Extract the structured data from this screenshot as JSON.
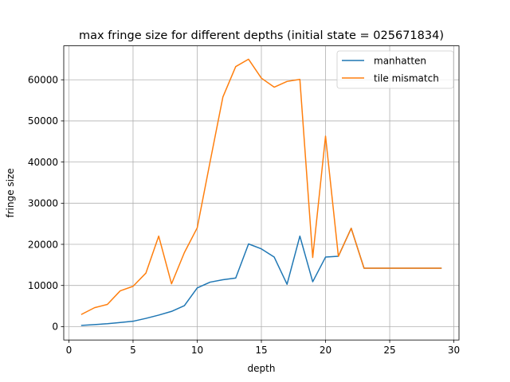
{
  "chart_data": {
    "type": "line",
    "title": "max fringe size for different depths (initial state = 025671834)",
    "xlabel": "depth",
    "ylabel": "fringe size",
    "xlim": [
      -0.4,
      30.4
    ],
    "ylim": [
      -3250,
      68250
    ],
    "xticks": [
      0,
      5,
      10,
      15,
      20,
      25,
      30
    ],
    "yticks": [
      0,
      10000,
      20000,
      30000,
      40000,
      50000,
      60000
    ],
    "grid": true,
    "legend_position": "top-right",
    "series": [
      {
        "name": "manhatten",
        "color": "#1f77b4",
        "x": [
          1,
          2,
          3,
          4,
          5,
          6,
          7,
          8,
          9,
          10,
          11,
          12,
          13,
          14,
          15,
          16,
          17,
          18,
          19,
          20,
          21,
          22,
          23,
          24,
          25,
          26,
          27,
          28,
          29
        ],
        "y": [
          300,
          500,
          700,
          1000,
          1300,
          2000,
          2800,
          3700,
          5100,
          9400,
          10800,
          11400,
          11800,
          20100,
          18900,
          16900,
          10300,
          22000,
          10900,
          16900,
          17100,
          23900,
          14200,
          14200,
          14200,
          14200,
          14200,
          14200,
          14200
        ]
      },
      {
        "name": "tile mismatch",
        "color": "#ff7f0e",
        "x": [
          1,
          2,
          3,
          4,
          5,
          6,
          7,
          8,
          9,
          10,
          11,
          12,
          13,
          14,
          15,
          16,
          17,
          18,
          19,
          20,
          21,
          22,
          23,
          24,
          25,
          26,
          27,
          28,
          29
        ],
        "y": [
          3000,
          4600,
          5400,
          8700,
          9800,
          13000,
          22000,
          10400,
          18000,
          24000,
          40000,
          55800,
          63200,
          65000,
          60400,
          58200,
          59600,
          60100,
          16800,
          46300,
          17100,
          23900,
          14200,
          14200,
          14200,
          14200,
          14200,
          14200,
          14200
        ]
      }
    ]
  }
}
